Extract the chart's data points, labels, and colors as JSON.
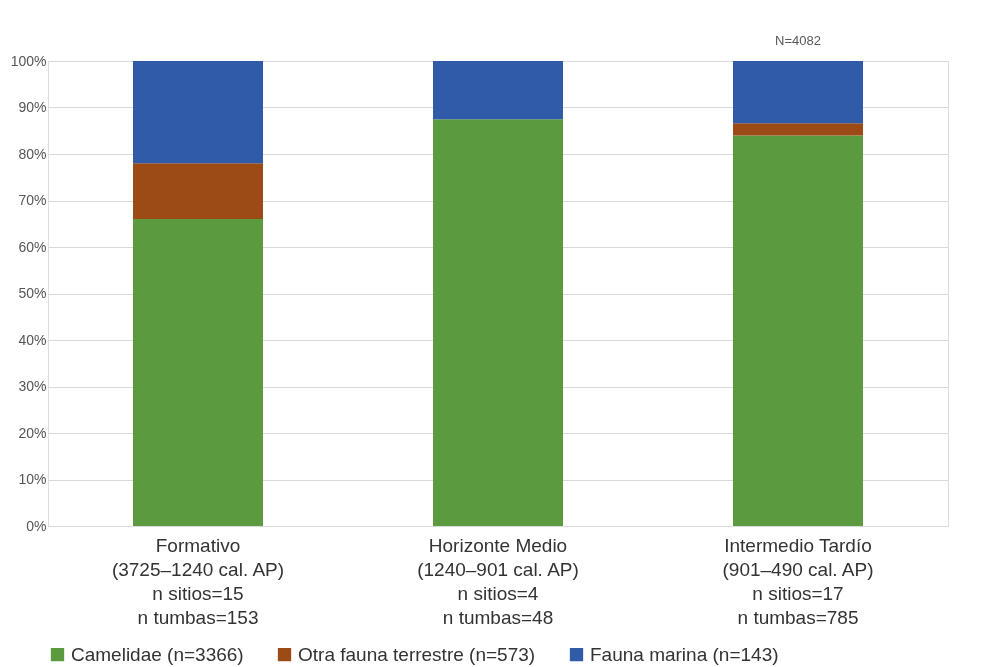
{
  "chart_data": {
    "type": "bar",
    "stacked": true,
    "categories": [
      "Formativo\n(3725–1240 cal. AP)\nn sitios=15\nn tumbas=153",
      "Horizonte Medio\n(1240–901 cal. AP)\nn sitios=4\nn tumbas=48",
      "Intermedio Tardío\n(901–490 cal. AP)\nn sitios=17\nn tumbas=785"
    ],
    "series": [
      {
        "name": "Camelidae (n=3366)",
        "color": "#5b9a3e",
        "values": [
          66,
          87.5,
          84
        ]
      },
      {
        "name": "Otra fauna terrestre (n=573)",
        "color": "#9c4a16",
        "values": [
          12,
          0,
          2.6
        ]
      },
      {
        "name": "Fauna marina (n=143)",
        "color": "#2f5ba8",
        "values": [
          22,
          12.5,
          13.4
        ]
      }
    ],
    "ylim": [
      0,
      100
    ],
    "yticks": [
      {
        "value": 0,
        "label": "0%"
      },
      {
        "value": 10,
        "label": "10%"
      },
      {
        "value": 20,
        "label": "20%"
      },
      {
        "value": 30,
        "label": "30%"
      },
      {
        "value": 40,
        "label": "40%"
      },
      {
        "value": 50,
        "label": "50%"
      },
      {
        "value": 60,
        "label": "60%"
      },
      {
        "value": 70,
        "label": "70%"
      },
      {
        "value": 80,
        "label": "80%"
      },
      {
        "value": 90,
        "label": "90%"
      },
      {
        "value": 100,
        "label": "100%"
      }
    ],
    "grid": "y",
    "legend": "bottom",
    "annotations": [
      {
        "text": "N=4082",
        "x": "Intermedio Tardío\n(901–490 cal. AP)\nn sitios=17\nn tumbas=785",
        "y": 100
      }
    ]
  }
}
